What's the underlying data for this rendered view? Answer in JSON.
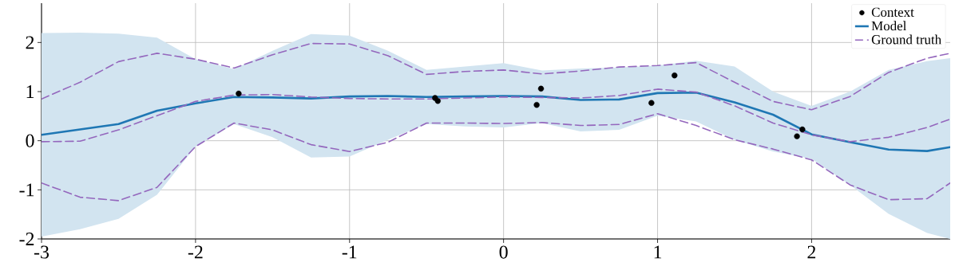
{
  "chart_data": {
    "type": "line",
    "x": [
      -3,
      -2.75,
      -2.5,
      -2.25,
      -2,
      -1.75,
      -1.5,
      -1.25,
      -1,
      -0.75,
      -0.5,
      -0.25,
      0,
      0.25,
      0.5,
      0.75,
      1,
      1.25,
      1.5,
      1.75,
      2,
      2.25,
      2.5,
      2.75,
      2.9
    ],
    "series": [
      {
        "name": "Context",
        "type": "scatter",
        "color": "#000000",
        "marker": "circle",
        "x": [
          -1.72,
          -0.445,
          -0.427,
          0.243,
          0.215,
          0.96,
          1.11,
          1.905,
          1.94
        ],
        "values": [
          0.96,
          0.87,
          0.81,
          1.06,
          0.73,
          0.77,
          1.33,
          0.09,
          0.23
        ]
      },
      {
        "name": "Model",
        "color": "#1f77b4",
        "marker": "none",
        "line_style": "solid",
        "values": [
          0.12,
          0.23,
          0.34,
          0.61,
          0.76,
          0.89,
          0.88,
          0.86,
          0.9,
          0.91,
          0.89,
          0.9,
          0.91,
          0.9,
          0.83,
          0.84,
          0.97,
          0.98,
          0.78,
          0.53,
          0.13,
          -0.03,
          -0.18,
          -0.21,
          -0.13
        ],
        "lower": [
          -1.95,
          -1.8,
          -1.59,
          -1.1,
          -0.12,
          0.34,
          0.07,
          -0.34,
          -0.32,
          0.02,
          0.34,
          0.29,
          0.27,
          0.36,
          0.19,
          0.22,
          0.51,
          0.39,
          0.02,
          -0.22,
          -0.37,
          -0.9,
          -1.49,
          -1.88,
          -2.0
        ],
        "upper": [
          2.19,
          2.2,
          2.18,
          2.1,
          1.66,
          1.46,
          1.83,
          2.17,
          2.14,
          1.83,
          1.44,
          1.51,
          1.58,
          1.43,
          1.47,
          1.49,
          1.53,
          1.63,
          1.51,
          1.0,
          0.71,
          1.0,
          1.44,
          1.62,
          1.68
        ]
      },
      {
        "name": "Ground truth",
        "color": "#9467bd",
        "marker": "none",
        "line_style": "dashed",
        "values": [
          -0.02,
          -0.01,
          0.22,
          0.51,
          0.8,
          0.93,
          0.94,
          0.89,
          0.86,
          0.85,
          0.85,
          0.87,
          0.89,
          0.88,
          0.87,
          0.92,
          1.05,
          0.99,
          0.71,
          0.36,
          0.12,
          -0.02,
          0.07,
          0.27,
          0.44
        ]
      },
      {
        "color": "#9467bd",
        "marker": "none",
        "line_style": "dashed",
        "values": [
          0.85,
          1.19,
          1.61,
          1.78,
          1.66,
          1.48,
          1.75,
          1.98,
          1.97,
          1.73,
          1.35,
          1.41,
          1.44,
          1.36,
          1.42,
          1.5,
          1.53,
          1.59,
          1.19,
          0.8,
          0.63,
          0.9,
          1.39,
          1.68,
          1.78
        ]
      },
      {
        "color": "#9467bd",
        "marker": "none",
        "line_style": "dashed",
        "values": [
          -0.86,
          -1.15,
          -1.22,
          -0.95,
          -0.12,
          0.36,
          0.22,
          -0.08,
          -0.22,
          -0.03,
          0.36,
          0.36,
          0.35,
          0.37,
          0.31,
          0.33,
          0.55,
          0.31,
          0.02,
          -0.17,
          -0.39,
          -0.9,
          -1.2,
          -1.18,
          -0.86
        ]
      }
    ],
    "xlim": [
      -3,
      2.9
    ],
    "ylim": [
      -2,
      2.8
    ],
    "xticks": [
      -3,
      -2,
      -1,
      0,
      1,
      2
    ],
    "yticks": [
      -2,
      -1,
      0,
      1,
      2
    ],
    "grid": true,
    "legend": "top right"
  }
}
